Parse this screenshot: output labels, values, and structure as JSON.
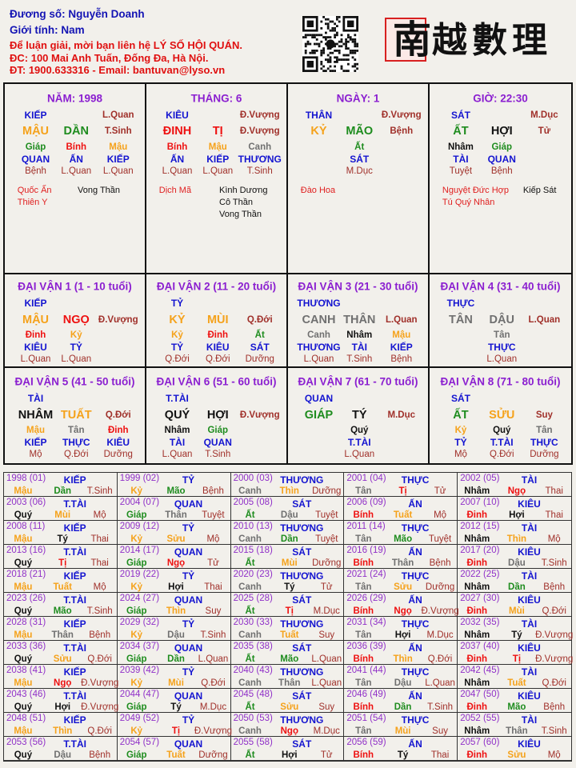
{
  "header": {
    "owner": "Đương số: Nguyễn Doanh",
    "gender": "Giới tính:   Nam",
    "contact_line1": "Để luận giải, mời bạn liên hệ LÝ SỐ HỘI QUÁN.",
    "contact_line2": "ĐC: 100 Mai Anh Tuấn, Đống Đa, Hà Nội.",
    "contact_line3": "ĐT: 1900.633316 - Email: bantuvan@lyso.vn"
  },
  "logo": {
    "seal_char": "南",
    "text": "越數理",
    "qr_icon": "qr-code-icon"
  },
  "colors": {
    "wood": "#1e8c1e",
    "fire": "#ee1010",
    "earth": "#f5a21b",
    "metal": "#707070",
    "water": "#111111",
    "god": "#1414d0",
    "state": "#a0302a",
    "title": "#8b1fd0",
    "year": "#9030c8",
    "star": "#e02020"
  },
  "pillars": [
    {
      "title": "NĂM: 1998",
      "god": "KIẾP",
      "god_state": "L.Quan",
      "stem": "MẬU",
      "branch": "DẦN",
      "state": "T.Sinh",
      "hidden": [
        [
          "Giáp",
          "QUAN",
          "Bệnh"
        ],
        [
          "Bính",
          "ẤN",
          "L.Quan"
        ],
        [
          "Mậu",
          "KIẾP",
          "L.Quan"
        ]
      ],
      "stars_left": [
        "Quốc Ấn",
        "Thiên Y"
      ],
      "stars_right": [
        "Vong Thần"
      ]
    },
    {
      "title": "THÁNG: 6",
      "god": "KIÊU",
      "god_state": "Đ.Vượng",
      "stem": "ĐINH",
      "branch": "TỊ",
      "state": "Đ.Vượng",
      "hidden": [
        [
          "Bính",
          "ẤN",
          "L.Quan"
        ],
        [
          "Mậu",
          "KIẾP",
          "L.Quan"
        ],
        [
          "Canh",
          "THƯƠNG",
          "T.Sinh"
        ]
      ],
      "stars_left": [
        "Dịch Mã"
      ],
      "stars_right": [
        "Kình Dương",
        "Cô Thần",
        "Vong Thần"
      ]
    },
    {
      "title": "NGÀY: 1",
      "god": "THÂN",
      "god_state": "Đ.Vượng",
      "stem": "KỶ",
      "branch": "MÃO",
      "state": "Bệnh",
      "hidden": [
        [
          "Ất",
          "SÁT",
          "M.Dục"
        ]
      ],
      "stars_left": [
        "Đào Hoa"
      ],
      "stars_right": []
    },
    {
      "title": "GIỜ: 22:30",
      "god": "SÁT",
      "god_state": "M.Dục",
      "stem": "ẤT",
      "branch": "HỢI",
      "state": "Tử",
      "hidden": [
        [
          "Nhâm",
          "TÀI",
          "Tuyệt"
        ],
        [
          "Giáp",
          "QUAN",
          "Bệnh"
        ]
      ],
      "stars_left": [
        "Nguyệt Đức Hợp",
        "Tú Quý Nhân"
      ],
      "stars_right": [
        "Kiếp Sát"
      ]
    }
  ],
  "dai_van": [
    {
      "title": "ĐẠI VẬN 1 (1 - 10 tuổi)",
      "god": "KIẾP",
      "stem": "MẬU",
      "branch": "NGỌ",
      "state": "Đ.Vượng",
      "hidden": [
        [
          "Đinh",
          "KIÊU",
          "L.Quan"
        ],
        [
          "Kỷ",
          "TỶ",
          "L.Quan"
        ]
      ]
    },
    {
      "title": "ĐẠI VẬN 2 (11 - 20 tuổi)",
      "god": "TỶ",
      "stem": "KỶ",
      "branch": "MÙI",
      "state": "Q.Đới",
      "hidden": [
        [
          "Kỷ",
          "TỶ",
          "Q.Đới"
        ],
        [
          "Đinh",
          "KIÊU",
          "Q.Đới"
        ],
        [
          "Ất",
          "SÁT",
          "Dưỡng"
        ]
      ]
    },
    {
      "title": "ĐẠI VẬN 3 (21 - 30 tuổi)",
      "god": "THƯƠNG",
      "stem": "CANH",
      "branch": "THÂN",
      "state": "L.Quan",
      "hidden": [
        [
          "Canh",
          "THƯƠNG",
          "L.Quan"
        ],
        [
          "Nhâm",
          "TÀI",
          "T.Sinh"
        ],
        [
          "Mậu",
          "KIẾP",
          "Bệnh"
        ]
      ]
    },
    {
      "title": "ĐẠI VẬN 4 (31 - 40 tuổi)",
      "god": "THỰC",
      "stem": "TÂN",
      "branch": "DẬU",
      "state": "L.Quan",
      "hidden": [
        [
          "Tân",
          "THỰC",
          "L.Quan"
        ]
      ]
    },
    {
      "title": "ĐẠI VẬN 5 (41 - 50 tuổi)",
      "god": "TÀI",
      "stem": "NHÂM",
      "branch": "TUẤT",
      "state": "Q.Đới",
      "hidden": [
        [
          "Mậu",
          "KIẾP",
          "Mộ"
        ],
        [
          "Tân",
          "THỰC",
          "Q.Đới"
        ],
        [
          "Đinh",
          "KIÊU",
          "Dưỡng"
        ]
      ]
    },
    {
      "title": "ĐẠI VẬN 6 (51 - 60 tuổi)",
      "god": "T.TÀI",
      "stem": "QUÝ",
      "branch": "HỢI",
      "state": "Đ.Vượng",
      "hidden": [
        [
          "Nhâm",
          "TÀI",
          "L.Quan"
        ],
        [
          "Giáp",
          "QUAN",
          "T.Sinh"
        ]
      ]
    },
    {
      "title": "ĐẠI VẬN 7 (61 - 70 tuổi)",
      "god": "QUAN",
      "stem": "GIÁP",
      "branch": "TÝ",
      "state": "M.Dục",
      "hidden": [
        [
          "Quý",
          "T.TÀI",
          "L.Quan"
        ]
      ]
    },
    {
      "title": "ĐẠI VẬN 8 (71 - 80 tuổi)",
      "god": "SÁT",
      "stem": "ẤT",
      "branch": "SỬU",
      "state": "Suy",
      "hidden": [
        [
          "Kỷ",
          "TỶ",
          "Mộ"
        ],
        [
          "Quý",
          "T.TÀI",
          "Q.Đới"
        ],
        [
          "Tân",
          "THỰC",
          "Dưỡng"
        ]
      ]
    }
  ],
  "years": [
    [
      "1998 (01)",
      "KIẾP",
      "Mậu",
      "Dần",
      "T.Sinh"
    ],
    [
      "1999 (02)",
      "TỶ",
      "Kỷ",
      "Mão",
      "Bệnh"
    ],
    [
      "2000 (03)",
      "THƯƠNG",
      "Canh",
      "Thìn",
      "Dưỡng"
    ],
    [
      "2001 (04)",
      "THỰC",
      "Tân",
      "Tị",
      "Tử"
    ],
    [
      "2002 (05)",
      "TÀI",
      "Nhâm",
      "Ngọ",
      "Thai"
    ],
    [
      "2003 (06)",
      "T.TÀI",
      "Quý",
      "Mùi",
      "Mộ"
    ],
    [
      "2004 (07)",
      "QUAN",
      "Giáp",
      "Thân",
      "Tuyệt"
    ],
    [
      "2005 (08)",
      "SÁT",
      "Ất",
      "Dậu",
      "Tuyệt"
    ],
    [
      "2006 (09)",
      "ẤN",
      "Bính",
      "Tuất",
      "Mộ"
    ],
    [
      "2007 (10)",
      "KIÊU",
      "Đinh",
      "Hợi",
      "Thai"
    ],
    [
      "2008 (11)",
      "KIẾP",
      "Mậu",
      "Tý",
      "Thai"
    ],
    [
      "2009 (12)",
      "TỶ",
      "Kỷ",
      "Sửu",
      "Mộ"
    ],
    [
      "2010 (13)",
      "THƯƠNG",
      "Canh",
      "Dần",
      "Tuyệt"
    ],
    [
      "2011 (14)",
      "THỰC",
      "Tân",
      "Mão",
      "Tuyệt"
    ],
    [
      "2012 (15)",
      "TÀI",
      "Nhâm",
      "Thìn",
      "Mộ"
    ],
    [
      "2013 (16)",
      "T.TÀI",
      "Quý",
      "Tị",
      "Thai"
    ],
    [
      "2014 (17)",
      "QUAN",
      "Giáp",
      "Ngọ",
      "Tử"
    ],
    [
      "2015 (18)",
      "SÁT",
      "Ất",
      "Mùi",
      "Dưỡng"
    ],
    [
      "2016 (19)",
      "ẤN",
      "Bính",
      "Thân",
      "Bệnh"
    ],
    [
      "2017 (20)",
      "KIÊU",
      "Đinh",
      "Dậu",
      "T.Sinh"
    ],
    [
      "2018 (21)",
      "KIẾP",
      "Mậu",
      "Tuất",
      "Mộ"
    ],
    [
      "2019 (22)",
      "TỶ",
      "Kỷ",
      "Hợi",
      "Thai"
    ],
    [
      "2020 (23)",
      "THƯƠNG",
      "Canh",
      "Tý",
      "Tử"
    ],
    [
      "2021 (24)",
      "THỰC",
      "Tân",
      "Sửu",
      "Dưỡng"
    ],
    [
      "2022 (25)",
      "TÀI",
      "Nhâm",
      "Dần",
      "Bệnh"
    ],
    [
      "2023 (26)",
      "T.TÀI",
      "Quý",
      "Mão",
      "T.Sinh"
    ],
    [
      "2024 (27)",
      "QUAN",
      "Giáp",
      "Thìn",
      "Suy"
    ],
    [
      "2025 (28)",
      "SÁT",
      "Ất",
      "Tị",
      "M.Dục"
    ],
    [
      "2026 (29)",
      "ẤN",
      "Bính",
      "Ngọ",
      "Đ.Vượng"
    ],
    [
      "2027 (30)",
      "KIÊU",
      "Đinh",
      "Mùi",
      "Q.Đới"
    ],
    [
      "2028 (31)",
      "KIẾP",
      "Mậu",
      "Thân",
      "Bệnh"
    ],
    [
      "2029 (32)",
      "TỶ",
      "Kỷ",
      "Dậu",
      "T.Sinh"
    ],
    [
      "2030 (33)",
      "THƯƠNG",
      "Canh",
      "Tuất",
      "Suy"
    ],
    [
      "2031 (34)",
      "THỰC",
      "Tân",
      "Hợi",
      "M.Dục"
    ],
    [
      "2032 (35)",
      "TÀI",
      "Nhâm",
      "Tý",
      "Đ.Vượng"
    ],
    [
      "2033 (36)",
      "T.TÀI",
      "Quý",
      "Sửu",
      "Q.Đới"
    ],
    [
      "2034 (37)",
      "QUAN",
      "Giáp",
      "Dần",
      "L.Quan"
    ],
    [
      "2035 (38)",
      "SÁT",
      "Ất",
      "Mão",
      "L.Quan"
    ],
    [
      "2036 (39)",
      "ẤN",
      "Bính",
      "Thìn",
      "Q.Đới"
    ],
    [
      "2037 (40)",
      "KIÊU",
      "Đinh",
      "Tị",
      "Đ.Vượng"
    ],
    [
      "2038 (41)",
      "KIẾP",
      "Mậu",
      "Ngọ",
      "Đ.Vượng"
    ],
    [
      "2039 (42)",
      "TỶ",
      "Kỷ",
      "Mùi",
      "Q.Đới"
    ],
    [
      "2040 (43)",
      "THƯƠNG",
      "Canh",
      "Thân",
      "L.Quan"
    ],
    [
      "2041 (44)",
      "THỰC",
      "Tân",
      "Dậu",
      "L.Quan"
    ],
    [
      "2042 (45)",
      "TÀI",
      "Nhâm",
      "Tuất",
      "Q.Đới"
    ],
    [
      "2043 (46)",
      "T.TÀI",
      "Quý",
      "Hợi",
      "Đ.Vượng"
    ],
    [
      "2044 (47)",
      "QUAN",
      "Giáp",
      "Tý",
      "M.Dục"
    ],
    [
      "2045 (48)",
      "SÁT",
      "Ất",
      "Sửu",
      "Suy"
    ],
    [
      "2046 (49)",
      "ẤN",
      "Bính",
      "Dần",
      "T.Sinh"
    ],
    [
      "2047 (50)",
      "KIÊU",
      "Đinh",
      "Mão",
      "Bệnh"
    ],
    [
      "2048 (51)",
      "KIẾP",
      "Mậu",
      "Thìn",
      "Q.Đới"
    ],
    [
      "2049 (52)",
      "TỶ",
      "Kỷ",
      "Tị",
      "Đ.Vượng"
    ],
    [
      "2050 (53)",
      "THƯƠNG",
      "Canh",
      "Ngọ",
      "M.Dục"
    ],
    [
      "2051 (54)",
      "THỰC",
      "Tân",
      "Mùi",
      "Suy"
    ],
    [
      "2052 (55)",
      "TÀI",
      "Nhâm",
      "Thân",
      "T.Sinh"
    ],
    [
      "2053 (56)",
      "T.TÀI",
      "Quý",
      "Dậu",
      "Bệnh"
    ],
    [
      "2054 (57)",
      "QUAN",
      "Giáp",
      "Tuất",
      "Dưỡng"
    ],
    [
      "2055 (58)",
      "SÁT",
      "Ất",
      "Hợi",
      "Tử"
    ],
    [
      "2056 (59)",
      "ẤN",
      "Bính",
      "Tý",
      "Thai"
    ],
    [
      "2057 (60)",
      "KIÊU",
      "Đinh",
      "Sửu",
      "Mộ"
    ]
  ]
}
